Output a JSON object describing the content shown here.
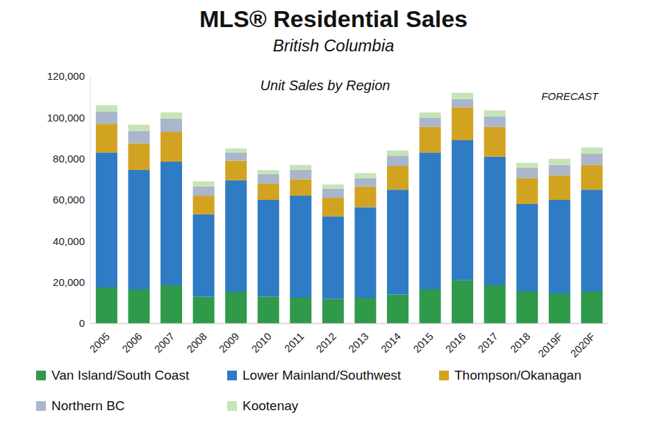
{
  "chart_data": {
    "type": "bar",
    "title": "MLS® Residential Sales",
    "subtitle": "British Columbia",
    "annotations": [
      "Unit Sales by Region",
      "FORECAST"
    ],
    "categories": [
      "2005",
      "2006",
      "2007",
      "2008",
      "2009",
      "2010",
      "2011",
      "2012",
      "2013",
      "2014",
      "2015",
      "2016",
      "2017",
      "2018",
      "2019F",
      "2020F"
    ],
    "series": [
      {
        "name": "Van Island/South Coast",
        "color": "#2e9a4a",
        "values": [
          17500,
          16500,
          18500,
          13000,
          15500,
          13000,
          12500,
          12000,
          12500,
          14000,
          16500,
          21000,
          18500,
          15500,
          14500,
          15500
        ]
      },
      {
        "name": "Lower Mainland/Southwest",
        "color": "#2f7bc4",
        "values": [
          65500,
          58000,
          60000,
          40000,
          54000,
          47000,
          49500,
          40000,
          44000,
          51000,
          66500,
          68000,
          62500,
          42500,
          45500,
          49500
        ]
      },
      {
        "name": "Thompson/Okanagan",
        "color": "#d1a321",
        "values": [
          14000,
          13000,
          14500,
          9000,
          9500,
          8000,
          8000,
          9000,
          10000,
          11500,
          12500,
          16000,
          14500,
          12500,
          12000,
          12000
        ]
      },
      {
        "name": "Northern BC",
        "color": "#a9b6cc",
        "values": [
          6000,
          6000,
          6500,
          4500,
          4000,
          4500,
          4500,
          4500,
          4000,
          5000,
          4500,
          4000,
          5000,
          5000,
          5000,
          5500
        ]
      },
      {
        "name": "Kootenay",
        "color": "#c6e4b6",
        "values": [
          3000,
          3000,
          3000,
          2500,
          2000,
          2000,
          2500,
          2000,
          2500,
          2500,
          2500,
          3000,
          3000,
          2500,
          3000,
          3000
        ]
      }
    ],
    "ylim": [
      0,
      120000
    ],
    "yticks": [
      0,
      {
        "value": 20000,
        "label": "20,000"
      },
      {
        "value": 40000,
        "label": "40,000"
      },
      {
        "value": 60000,
        "label": "60,000"
      },
      {
        "value": 80000,
        "label": "80,000"
      },
      {
        "value": 100000,
        "label": "100,000"
      },
      {
        "value": 120000,
        "label": "120,000"
      }
    ],
    "stacked": true,
    "grid": false,
    "legend": "bottom"
  }
}
